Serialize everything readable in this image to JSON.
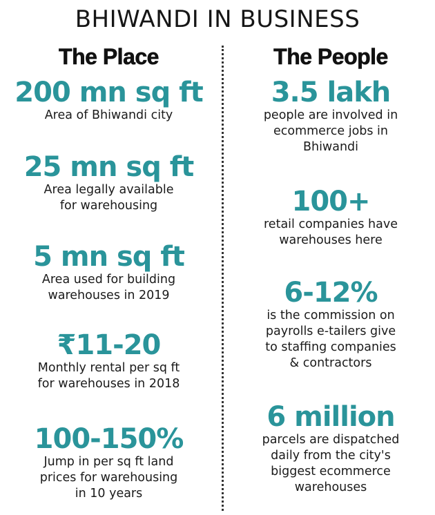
{
  "title": "BHIWANDI IN BUSINESS",
  "place": {
    "heading": "The Place",
    "stats": [
      {
        "value": "200 mn sq ft",
        "desc": "Area of Bhiwandi city"
      },
      {
        "value": "25 mn sq ft",
        "desc": "Area legally available\nfor warehousing"
      },
      {
        "value": "5 mn sq ft",
        "desc": "Area used for building\nwarehouses in 2019"
      },
      {
        "value": "₹11-20",
        "desc": "Monthly rental per sq ft\nfor warehouses in 2018"
      },
      {
        "value": "100-150%",
        "desc": "Jump in per sq ft land\nprices for warehousing\nin 10 years"
      }
    ]
  },
  "people": {
    "heading": "The People",
    "stats": [
      {
        "value": "3.5 lakh",
        "desc": "people are involved in\necommerce jobs in\nBhiwandi"
      },
      {
        "value": "100+",
        "desc": "retail companies have\nwarehouses here"
      },
      {
        "value": "6-12%",
        "desc": "is the commission on\npayrolls e-tailers give\nto staffing companies\n& contractors"
      },
      {
        "value": "6 million",
        "desc": "parcels are dispatched\ndaily from the city's\nbiggest ecommerce\nwarehouses"
      }
    ]
  }
}
